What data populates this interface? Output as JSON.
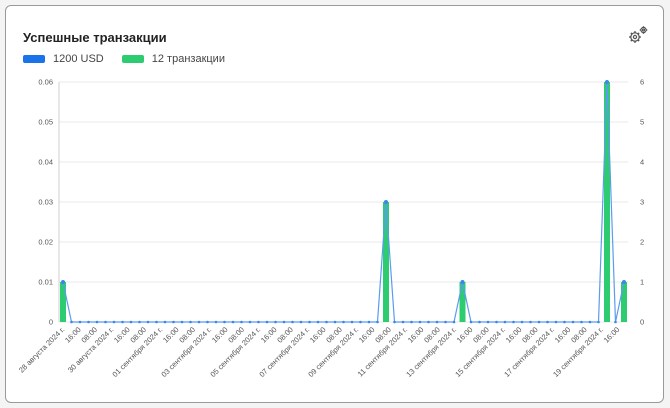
{
  "card": {
    "title": "Успешные транзакции"
  },
  "icons": {
    "settings": "settings-gears-icon"
  },
  "legend": [
    {
      "label": "1200 USD",
      "color": "#1a73e8"
    },
    {
      "label": "12 транзакции",
      "color": "#2ecc71"
    }
  ],
  "chart_data": {
    "type": "bar",
    "grid": true,
    "legend_position": "top-left",
    "left_axis": {
      "ylim": [
        0,
        0.06
      ],
      "ticks": [
        "0",
        "0.01",
        "0.02",
        "0.03",
        "0.04",
        "0.05",
        "0.06"
      ]
    },
    "right_axis": {
      "ylim": [
        0,
        6
      ],
      "ticks": [
        "0",
        "1",
        "2",
        "3",
        "4",
        "5",
        "6"
      ]
    },
    "x_tick_labels": [
      "28 августа 2024 г.",
      "16:00",
      "08:00",
      "30 августа 2024 г.",
      "16:00",
      "08:00",
      "01 сентября 2024 г.",
      "16:00",
      "08:00",
      "03 сентября 2024 г.",
      "16:00",
      "08:00",
      "05 сентября 2024 г.",
      "16:00",
      "08:00",
      "07 сентября 2024 г.",
      "16:00",
      "08:00",
      "09 сентября 2024 г.",
      "16:00",
      "08:00",
      "11 сентября 2024 г.",
      "16:00",
      "08:00",
      "13 сентября 2024 г.",
      "16:00",
      "08:00",
      "15 сентября 2024 г.",
      "16:00",
      "08:00",
      "17 сентября 2024 г.",
      "16:00",
      "08:00",
      "19 сентября 2024 г.",
      "16:00"
    ],
    "points_count": 67,
    "series": [
      {
        "name": "1200 USD",
        "kind": "line",
        "axis": "left",
        "color": "#1a73e8",
        "nonzero": [
          {
            "index": 0,
            "value": 0.01
          },
          {
            "index": 38,
            "value": 0.03
          },
          {
            "index": 47,
            "value": 0.01
          },
          {
            "index": 64,
            "value": 0.06
          },
          {
            "index": 66,
            "value": 0.01
          }
        ]
      },
      {
        "name": "12 транзакции",
        "kind": "bar",
        "axis": "right",
        "color": "#2ecc71",
        "nonzero": [
          {
            "index": 0,
            "value": 1
          },
          {
            "index": 38,
            "value": 3
          },
          {
            "index": 47,
            "value": 1
          },
          {
            "index": 64,
            "value": 6
          },
          {
            "index": 66,
            "value": 1
          }
        ]
      }
    ]
  }
}
